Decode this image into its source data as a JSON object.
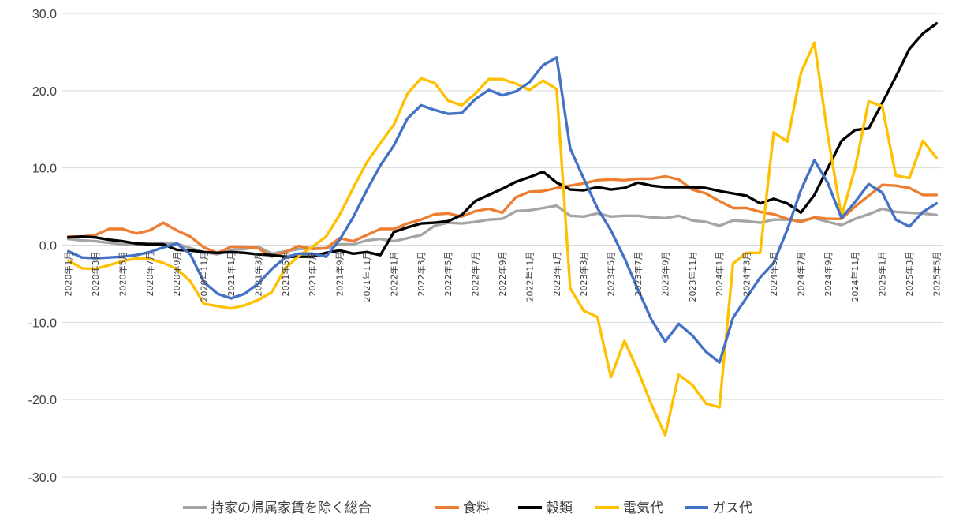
{
  "chart_data": {
    "type": "line",
    "ylim": [
      -30,
      30
    ],
    "ytick_step": 10,
    "ytick_labels": [
      "-30.0",
      "-20.0",
      "-10.0",
      "0.0",
      "10.0",
      "20.0",
      "30.0"
    ],
    "grid": true,
    "legend_position": "bottom",
    "x": [
      "2020年1月",
      "2020年2月",
      "2020年3月",
      "2020年4月",
      "2020年5月",
      "2020年6月",
      "2020年7月",
      "2020年8月",
      "2020年9月",
      "2020年10月",
      "2020年11月",
      "2020年12月",
      "2021年1月",
      "2021年2月",
      "2021年3月",
      "2021年4月",
      "2021年5月",
      "2021年6月",
      "2021年7月",
      "2021年8月",
      "2021年9月",
      "2021年10月",
      "2021年11月",
      "2021年12月",
      "2022年1月",
      "2022年2月",
      "2022年3月",
      "2022年4月",
      "2022年5月",
      "2022年6月",
      "2022年7月",
      "2022年8月",
      "2022年9月",
      "2022年10月",
      "2022年11月",
      "2022年12月",
      "2023年1月",
      "2023年2月",
      "2023年3月",
      "2023年4月",
      "2023年5月",
      "2023年6月",
      "2023年7月",
      "2023年8月",
      "2023年9月",
      "2023年10月",
      "2023年11月",
      "2023年12月",
      "2024年1月",
      "2024年2月",
      "2024年3月",
      "2024年4月",
      "2024年5月",
      "2024年6月",
      "2024年7月",
      "2024年8月",
      "2024年9月",
      "2024年10月",
      "2024年11月",
      "2024年12月",
      "2025年1月",
      "2025年2月",
      "2025年3月",
      "2025年4月",
      "2025年5月"
    ],
    "x_tick_labels": [
      "2020年1月",
      "2020年3月",
      "2020年5月",
      "2020年7月",
      "2020年9月",
      "2020年11月",
      "2021年1月",
      "2021年3月",
      "2021年5月",
      "2021年7月",
      "2021年9月",
      "2021年11月",
      "2022年1月",
      "2022年3月",
      "2022年5月",
      "2022年7月",
      "2022年9月",
      "2022年11月",
      "2023年1月",
      "2023年3月",
      "2023年5月",
      "2023年7月",
      "2023年9月",
      "2023年11月",
      "2024年1月",
      "2024年3月",
      "2024年5月",
      "2024年7月",
      "2024年9月",
      "2024年11月",
      "2025年1月",
      "2025年3月",
      "2025年5月"
    ],
    "series": [
      {
        "name": "持家の帰属家賃を除く総合",
        "color": "#a5a5a5",
        "values": [
          0.8,
          0.6,
          0.5,
          0.3,
          0.1,
          0.1,
          0.3,
          0.3,
          0.2,
          -0.4,
          -0.9,
          -1.2,
          -0.6,
          -0.5,
          -0.2,
          -1.1,
          -0.8,
          -0.5,
          -0.4,
          -0.4,
          0.1,
          0.1,
          0.6,
          0.8,
          0.5,
          0.9,
          1.3,
          2.5,
          2.9,
          2.8,
          3.0,
          3.3,
          3.4,
          4.4,
          4.5,
          4.8,
          5.1,
          3.8,
          3.7,
          4.1,
          3.7,
          3.8,
          3.8,
          3.6,
          3.5,
          3.8,
          3.2,
          3.0,
          2.5,
          3.2,
          3.1,
          2.9,
          3.3,
          3.3,
          3.2,
          3.5,
          3.0,
          2.6,
          3.4,
          4.0,
          4.7,
          4.3,
          4.2,
          4.1,
          3.9
        ]
      },
      {
        "name": "食料",
        "color": "#ed7d31",
        "values": [
          1.1,
          1.1,
          1.3,
          2.1,
          2.1,
          1.5,
          1.9,
          2.9,
          1.9,
          1.1,
          -0.3,
          -1.0,
          -0.2,
          -0.2,
          -0.4,
          -1.5,
          -0.9,
          -0.1,
          -0.5,
          -0.4,
          0.9,
          0.5,
          1.3,
          2.1,
          2.1,
          2.8,
          3.3,
          4.0,
          4.1,
          3.7,
          4.4,
          4.7,
          4.2,
          6.2,
          6.9,
          7.0,
          7.4,
          7.7,
          8.0,
          8.4,
          8.5,
          8.4,
          8.6,
          8.6,
          8.9,
          8.5,
          7.2,
          6.7,
          5.7,
          4.8,
          4.8,
          4.3,
          4.0,
          3.4,
          3.0,
          3.6,
          3.4,
          3.4,
          5.0,
          6.4,
          7.8,
          7.7,
          7.4,
          6.5,
          6.5
        ]
      },
      {
        "name": "穀類",
        "color": "#000000",
        "values": [
          1.0,
          1.1,
          1.0,
          0.7,
          0.5,
          0.2,
          0.1,
          0.1,
          -0.6,
          -0.7,
          -0.9,
          -1.0,
          -0.9,
          -1.0,
          -1.2,
          -1.3,
          -1.5,
          -1.5,
          -1.5,
          -1.0,
          -0.7,
          -1.1,
          -0.9,
          -1.3,
          1.7,
          2.3,
          2.8,
          2.9,
          3.1,
          3.9,
          5.7,
          6.5,
          7.3,
          8.2,
          8.8,
          9.5,
          8.1,
          7.2,
          7.1,
          7.5,
          7.2,
          7.4,
          8.1,
          7.7,
          7.5,
          7.5,
          7.5,
          7.4,
          7.0,
          6.7,
          6.4,
          5.4,
          6.0,
          5.4,
          4.2,
          6.5,
          10.0,
          13.5,
          14.9,
          15.1,
          18.4,
          21.8,
          25.4,
          27.4,
          28.7
        ]
      },
      {
        "name": "電気代",
        "color": "#ffc000",
        "values": [
          -2.0,
          -3.0,
          -3.1,
          -2.6,
          -2.1,
          -1.7,
          -1.8,
          -2.3,
          -3.1,
          -4.7,
          -7.6,
          -7.9,
          -8.2,
          -7.8,
          -7.1,
          -6.1,
          -3.0,
          -1.4,
          -0.2,
          1.1,
          3.9,
          7.4,
          10.7,
          13.2,
          15.6,
          19.6,
          21.6,
          21.0,
          18.7,
          18.1,
          19.6,
          21.5,
          21.5,
          20.9,
          20.1,
          21.3,
          20.2,
          -5.6,
          -8.5,
          -9.3,
          -17.1,
          -12.4,
          -16.3,
          -20.7,
          -24.6,
          -16.8,
          -18.1,
          -20.5,
          -21.0,
          -2.4,
          -1.0,
          -1.0,
          14.6,
          13.4,
          22.3,
          26.2,
          14.1,
          3.7,
          10.0,
          18.6,
          18.0,
          9.0,
          8.7,
          13.5,
          11.3
        ]
      },
      {
        "name": "ガス代",
        "color": "#4472c4",
        "values": [
          -0.8,
          -1.6,
          -1.7,
          -1.6,
          -1.5,
          -1.3,
          -0.9,
          -0.3,
          0.2,
          -1.2,
          -4.8,
          -6.3,
          -6.9,
          -6.3,
          -5.0,
          -3.1,
          -1.6,
          -1.1,
          -1.1,
          -1.5,
          0.7,
          3.6,
          7.1,
          10.3,
          12.9,
          16.4,
          18.1,
          17.5,
          17.0,
          17.1,
          18.9,
          20.1,
          19.4,
          19.9,
          21.1,
          23.3,
          24.3,
          12.5,
          8.6,
          4.8,
          1.9,
          -1.7,
          -5.8,
          -9.7,
          -12.5,
          -10.2,
          -11.7,
          -13.8,
          -15.2,
          -9.4,
          -6.8,
          -4.2,
          -2.3,
          2.0,
          7.1,
          11.0,
          8.0,
          3.5,
          5.6,
          7.9,
          6.8,
          3.3,
          2.4,
          4.3,
          5.4
        ]
      }
    ]
  }
}
